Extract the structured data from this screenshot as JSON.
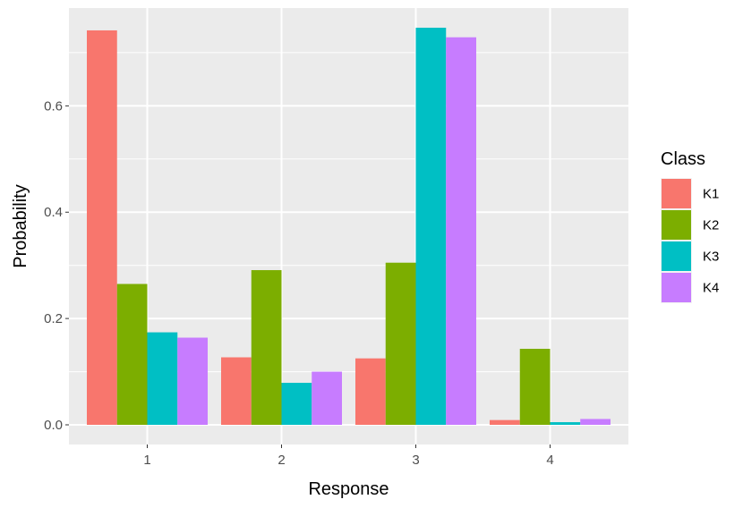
{
  "chart_data": {
    "type": "bar",
    "categories": [
      "1",
      "2",
      "3",
      "4"
    ],
    "series": [
      {
        "name": "K1",
        "color": "#F8766D",
        "values": [
          0.742,
          0.127,
          0.125,
          0.009
        ]
      },
      {
        "name": "K2",
        "color": "#7CAE00",
        "values": [
          0.265,
          0.291,
          0.305,
          0.143
        ]
      },
      {
        "name": "K3",
        "color": "#00BFC4",
        "values": [
          0.174,
          0.079,
          0.747,
          0.005
        ]
      },
      {
        "name": "K4",
        "color": "#C77CFF",
        "values": [
          0.164,
          0.1,
          0.729,
          0.011
        ]
      }
    ],
    "xlabel": "Response",
    "ylabel": "Probability",
    "yticks": [
      0.0,
      0.2,
      0.4,
      0.6
    ],
    "ytick_labels": [
      "0.0",
      "0.2",
      "0.4",
      "0.6"
    ],
    "ylim": [
      -0.037,
      0.784
    ],
    "legend_title": "Class",
    "legend_position": "right",
    "grid": true,
    "panel_background": "#EBEBEB",
    "grid_color": "#FFFFFF"
  }
}
